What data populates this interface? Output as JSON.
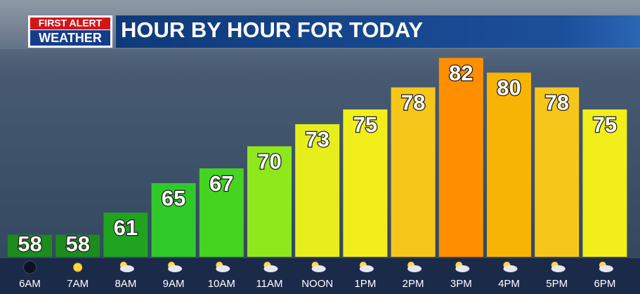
{
  "chart_data": {
    "type": "bar",
    "logo": {
      "line1": "FIRST ALERT",
      "line2": "WEATHER"
    },
    "title": "HOUR BY HOUR FOR TODAY",
    "categories": [
      "6AM",
      "7AM",
      "8AM",
      "9AM",
      "10AM",
      "11AM",
      "NOON",
      "1PM",
      "2PM",
      "3PM",
      "4PM",
      "5PM",
      "6PM"
    ],
    "values": [
      58,
      58,
      61,
      65,
      67,
      70,
      73,
      75,
      78,
      82,
      80,
      78,
      75
    ],
    "colors": [
      "#1c8c1c",
      "#1c8c1c",
      "#20a420",
      "#2fca2a",
      "#45d420",
      "#8fe81c",
      "#e6ef1c",
      "#f1ee1c",
      "#f6c61a",
      "#ff8f00",
      "#f8b404",
      "#f6c61a",
      "#f1ee1c"
    ],
    "ylim": [
      55,
      83
    ]
  }
}
